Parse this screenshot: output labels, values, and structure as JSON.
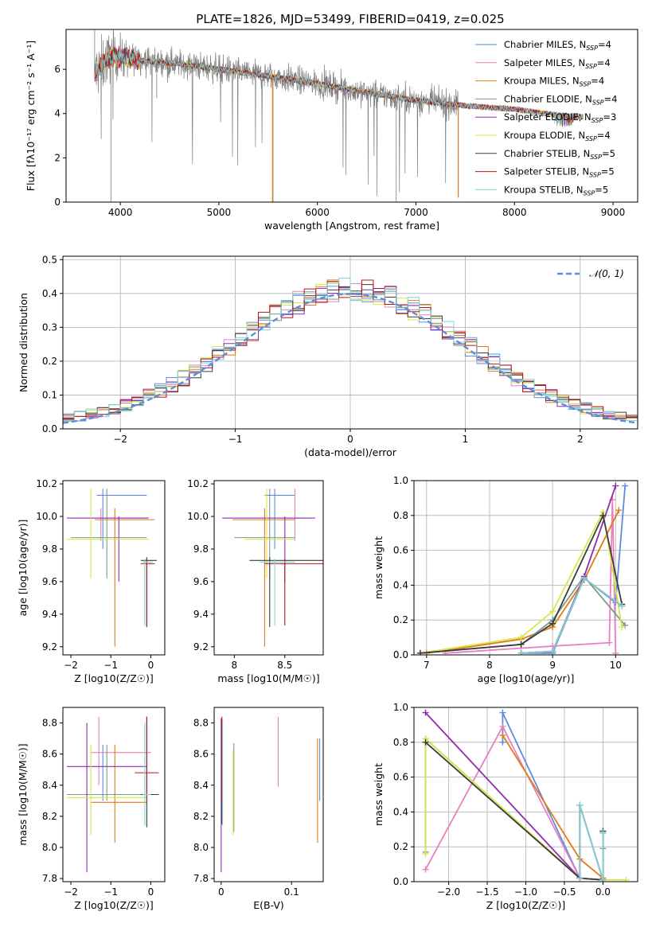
{
  "figure": {
    "title": "PLATE=1826, MJD=53499, FIBERID=0419, z=0.025"
  },
  "colors": {
    "Chabrier MILES": "#5b8ddb",
    "Salpeter MILES": "#e87fbf",
    "Kroupa MILES": "#e07b1a",
    "Chabrier ELODIE": "#7a9b8a",
    "Salpeter ELODIE": "#8e2cb0",
    "Kroupa ELODIE": "#d8e64a",
    "Chabrier STELIB": "#3c3c3c",
    "Salpeter STELIB": "#b81414",
    "Kroupa STELIB": "#7ed3d6",
    "data": "#7f7f7f",
    "normal_curve": "#5b8ddb"
  },
  "chart_data": [
    {
      "id": "spectrum",
      "type": "line",
      "xlabel": "wavelength [Angstrom, rest frame]",
      "ylabel": "Flux [fλ10⁻¹⁷ erg cm⁻² s⁻¹ A⁻¹]",
      "xlim": [
        3450,
        9250
      ],
      "ylim": [
        0,
        7.8
      ],
      "xticks": [
        4000,
        5000,
        6000,
        7000,
        8000,
        9000
      ],
      "yticks": [
        0,
        2,
        4,
        6
      ],
      "grid": false,
      "legend_position": "top-right",
      "data_range": [
        3740,
        7430
      ],
      "model_range": [
        3740,
        8700
      ],
      "continuum": [
        [
          3740,
          5.8
        ],
        [
          3900,
          6.6
        ],
        [
          4200,
          6.4
        ],
        [
          4600,
          6.25
        ],
        [
          5000,
          6.0
        ],
        [
          5500,
          5.7
        ],
        [
          6000,
          5.35
        ],
        [
          6500,
          4.95
        ],
        [
          7000,
          4.6
        ],
        [
          7500,
          4.35
        ],
        [
          8000,
          4.2
        ],
        [
          8400,
          3.95
        ],
        [
          8700,
          3.85
        ]
      ],
      "series": [
        {
          "name": "Chabrier MILES, N_SSP=4"
        },
        {
          "name": "Salpeter MILES, N_SSP=4"
        },
        {
          "name": "Kroupa MILES, N_SSP=4"
        },
        {
          "name": "Chabrier ELODIE, N_SSP=4"
        },
        {
          "name": "Salpeter ELODIE, N_SSP=3"
        },
        {
          "name": "Kroupa ELODIE, N_SSP=4"
        },
        {
          "name": "Chabrier STELIB, N_SSP=5"
        },
        {
          "name": "Salpeter STELIB, N_SSP=5"
        },
        {
          "name": "Kroupa STELIB, N_SSP=5"
        }
      ]
    },
    {
      "id": "residuals",
      "type": "line",
      "xlabel": "(data-model)/error",
      "ylabel": "Normed distribution",
      "xlim": [
        -2.5,
        2.5
      ],
      "ylim": [
        0,
        0.51
      ],
      "xticks": [
        -2,
        -1,
        0,
        1,
        2
      ],
      "yticks": [
        0.0,
        0.1,
        0.2,
        0.3,
        0.4,
        0.5
      ],
      "grid": true,
      "legend_position": "top-right",
      "legend_label": "𝒩(0, 1)",
      "bin_width": 0.1,
      "bins_start": -2.5,
      "series_count": 9
    },
    {
      "id": "age-Z",
      "type": "scatter",
      "xlabel": "Z [log10(Z/Z☉)]",
      "ylabel": "age  [log10(age/yr)]",
      "xlim": [
        -2.2,
        0.35
      ],
      "ylim": [
        9.15,
        10.22
      ],
      "xticks": [
        -2,
        -1,
        0
      ],
      "yticks": [
        9.2,
        9.4,
        9.6,
        9.8,
        10.0,
        10.2
      ],
      "points": [
        {
          "x": -1.2,
          "y": 10.13,
          "ex": [
            -1.35,
            -0.1
          ],
          "ey": [
            9.8,
            10.17
          ],
          "c": "Chabrier MILES"
        },
        {
          "x": -1.25,
          "y": 9.99,
          "ex": [
            -1.6,
            -0.15
          ],
          "ey": [
            9.85,
            10.05
          ],
          "c": "Salpeter MILES"
        },
        {
          "x": -0.9,
          "y": 9.98,
          "ex": [
            -1.4,
            0.1
          ],
          "ey": [
            9.2,
            10.05
          ],
          "c": "Kroupa MILES"
        },
        {
          "x": -1.1,
          "y": 9.87,
          "ex": [
            -2.0,
            -0.1
          ],
          "ey": [
            9.62,
            10.17
          ],
          "c": "Chabrier ELODIE"
        },
        {
          "x": -0.8,
          "y": 9.99,
          "ex": [
            -2.1,
            -0.05
          ],
          "ey": [
            9.6,
            10.0
          ],
          "c": "Salpeter ELODIE"
        },
        {
          "x": -1.5,
          "y": 9.86,
          "ex": [
            -2.1,
            -0.05
          ],
          "ey": [
            9.62,
            10.17
          ],
          "c": "Kroupa ELODIE"
        },
        {
          "x": -0.1,
          "y": 9.73,
          "ex": [
            -0.25,
            0.15
          ],
          "ey": [
            9.32,
            9.75
          ],
          "c": "Chabrier STELIB"
        },
        {
          "x": -0.1,
          "y": 9.71,
          "ex": [
            -0.25,
            0.1
          ],
          "ey": [
            9.33,
            9.74
          ],
          "c": "Salpeter STELIB"
        },
        {
          "x": -0.15,
          "y": 9.72,
          "ex": [
            -0.2,
            0.05
          ],
          "ey": [
            9.33,
            9.74
          ],
          "c": "Kroupa STELIB"
        }
      ]
    },
    {
      "id": "age-mass",
      "type": "scatter",
      "xlabel": "mass [log10(M/M☉)]",
      "ylabel": "",
      "xlim": [
        7.8,
        8.88
      ],
      "ylim": [
        9.15,
        10.22
      ],
      "xticks": [
        8.0,
        8.5
      ],
      "yticks": [
        9.2,
        9.4,
        9.6,
        9.8,
        10.0,
        10.2
      ],
      "points": [
        {
          "x": 8.4,
          "y": 10.13,
          "ex": [
            8.3,
            8.6
          ],
          "ey": [
            9.8,
            10.17
          ],
          "c": "Chabrier MILES"
        },
        {
          "x": 8.6,
          "y": 9.99,
          "ex": [
            8.5,
            8.7
          ],
          "ey": [
            9.85,
            10.17
          ],
          "c": "Salpeter MILES"
        },
        {
          "x": 8.3,
          "y": 9.98,
          "ex": [
            7.98,
            8.6
          ],
          "ey": [
            9.2,
            10.05
          ],
          "c": "Kroupa MILES"
        },
        {
          "x": 8.35,
          "y": 9.87,
          "ex": [
            8.0,
            8.6
          ],
          "ey": [
            9.62,
            10.17
          ],
          "c": "Chabrier ELODIE"
        },
        {
          "x": 8.5,
          "y": 9.99,
          "ex": [
            7.88,
            8.8
          ],
          "ey": [
            9.6,
            10.0
          ],
          "c": "Salpeter ELODIE"
        },
        {
          "x": 8.32,
          "y": 9.86,
          "ex": [
            8.1,
            8.6
          ],
          "ey": [
            9.62,
            10.17
          ],
          "c": "Kroupa ELODIE"
        },
        {
          "x": 8.35,
          "y": 9.73,
          "ex": [
            8.15,
            8.9
          ],
          "ey": [
            9.32,
            9.75
          ],
          "c": "Chabrier STELIB"
        },
        {
          "x": 8.5,
          "y": 9.71,
          "ex": [
            8.3,
            8.9
          ],
          "ey": [
            9.33,
            9.74
          ],
          "c": "Salpeter STELIB"
        },
        {
          "x": 8.4,
          "y": 9.72,
          "ex": [
            8.25,
            8.6
          ],
          "ey": [
            9.33,
            9.74
          ],
          "c": "Kroupa STELIB"
        }
      ]
    },
    {
      "id": "weight-age",
      "type": "line",
      "xlabel": "age  [log10(age/yr)]",
      "ylabel": "mass weight",
      "xlim": [
        6.8,
        10.35
      ],
      "ylim": [
        0,
        1
      ],
      "xticks": [
        7,
        8,
        9,
        10
      ],
      "yticks": [
        0.0,
        0.2,
        0.4,
        0.6,
        0.8,
        1.0
      ],
      "grid": true,
      "series": [
        {
          "c": "Chabrier MILES",
          "x": [
            8.5,
            9.0,
            9.5,
            10.0,
            10.15
          ],
          "y": [
            0.01,
            0.01,
            0.44,
            0.3,
            0.97
          ]
        },
        {
          "c": "Salpeter MILES",
          "x": [
            7.3,
            9.0,
            9.9,
            9.95,
            10.0
          ],
          "y": [
            0.01,
            0.05,
            0.07,
            0.89,
            0.01
          ]
        },
        {
          "c": "Kroupa MILES",
          "x": [
            7.0,
            8.5,
            9.0,
            9.5,
            10.05
          ],
          "y": [
            0.01,
            0.09,
            0.16,
            0.43,
            0.83
          ]
        },
        {
          "c": "Chabrier ELODIE",
          "x": [
            6.9,
            8.5,
            9.0,
            9.5,
            10.15
          ],
          "y": [
            0.01,
            0.06,
            0.2,
            0.45,
            0.17
          ]
        },
        {
          "c": "Salpeter ELODIE",
          "x": [
            8.5,
            9.0,
            9.5,
            10.0
          ],
          "y": [
            0.01,
            0.02,
            0.45,
            0.97
          ]
        },
        {
          "c": "Kroupa ELODIE",
          "x": [
            6.9,
            8.5,
            9.0,
            9.8,
            10.1
          ],
          "y": [
            0.01,
            0.1,
            0.25,
            0.82,
            0.16
          ]
        },
        {
          "c": "Chabrier STELIB",
          "x": [
            6.9,
            8.5,
            9.0,
            9.8,
            10.1
          ],
          "y": [
            0.01,
            0.06,
            0.18,
            0.8,
            0.29
          ]
        },
        {
          "c": "Salpeter STELIB",
          "x": [
            8.5,
            9.0,
            9.5,
            10.1
          ],
          "y": [
            0.01,
            0.02,
            0.44,
            0.28
          ]
        },
        {
          "c": "Kroupa STELIB",
          "x": [
            8.5,
            9.0,
            9.5,
            10.1
          ],
          "y": [
            0.01,
            0.02,
            0.44,
            0.28
          ]
        }
      ]
    },
    {
      "id": "mass-Z",
      "type": "scatter",
      "xlabel": "Z [log10(Z/Z☉)]",
      "ylabel": "mass [log10(M/M☉)]",
      "xlim": [
        -2.2,
        0.35
      ],
      "ylim": [
        7.78,
        8.9
      ],
      "xticks": [
        -2,
        -1,
        0
      ],
      "yticks": [
        7.8,
        8.0,
        8.2,
        8.4,
        8.6,
        8.8
      ],
      "points": [
        {
          "x": -1.2,
          "y": 8.34,
          "ex": [
            -1.4,
            -0.1
          ],
          "ey": [
            8.3,
            8.66
          ],
          "c": "Chabrier MILES"
        },
        {
          "x": -1.3,
          "y": 8.61,
          "ex": [
            -1.5,
            0.0
          ],
          "ey": [
            8.4,
            8.84
          ],
          "c": "Salpeter MILES"
        },
        {
          "x": -0.9,
          "y": 8.29,
          "ex": [
            -1.5,
            -0.1
          ],
          "ey": [
            8.03,
            8.66
          ],
          "c": "Kroupa MILES"
        },
        {
          "x": -1.1,
          "y": 8.34,
          "ex": [
            -2.1,
            0.2
          ],
          "ey": [
            8.3,
            8.66
          ],
          "c": "Chabrier ELODIE"
        },
        {
          "x": -1.6,
          "y": 8.52,
          "ex": [
            -2.1,
            -0.1
          ],
          "ey": [
            7.84,
            8.8
          ],
          "c": "Salpeter ELODIE"
        },
        {
          "x": -1.5,
          "y": 8.32,
          "ex": [
            -2.1,
            -0.1
          ],
          "ey": [
            8.08,
            8.66
          ],
          "c": "Kroupa ELODIE"
        },
        {
          "x": -0.1,
          "y": 8.34,
          "ex": [
            -0.25,
            0.2
          ],
          "ey": [
            8.13,
            8.84
          ],
          "c": "Chabrier STELIB"
        },
        {
          "x": -0.1,
          "y": 8.48,
          "ex": [
            -0.4,
            0.2
          ],
          "ey": [
            8.3,
            8.84
          ],
          "c": "Salpeter STELIB"
        },
        {
          "x": -0.15,
          "y": 8.34,
          "ex": [
            -0.2,
            0.0
          ],
          "ey": [
            8.14,
            8.8
          ],
          "c": "Kroupa STELIB"
        }
      ]
    },
    {
      "id": "mass-ebv",
      "type": "scatter",
      "xlabel": "E(B-V)",
      "ylabel": "",
      "xlim": [
        -0.01,
        0.145
      ],
      "ylim": [
        7.78,
        8.9
      ],
      "xticks": [
        0.0,
        0.1
      ],
      "yticks": [
        7.8,
        8.0,
        8.2,
        8.4,
        8.6,
        8.8
      ],
      "points": [
        {
          "x": 0.14,
          "y": 8.5,
          "ey": [
            8.3,
            8.7
          ],
          "c": "Chabrier MILES"
        },
        {
          "x": 0.081,
          "y": 8.6,
          "ey": [
            8.39,
            8.84
          ],
          "c": "Salpeter MILES"
        },
        {
          "x": 0.137,
          "y": 8.4,
          "ey": [
            8.03,
            8.7
          ],
          "c": "Kroupa MILES"
        },
        {
          "x": 0.018,
          "y": 8.45,
          "ey": [
            8.1,
            8.67
          ],
          "c": "Chabrier ELODIE"
        },
        {
          "x": 0.0,
          "y": 8.2,
          "ey": [
            7.84,
            8.83
          ],
          "c": "Salpeter ELODIE"
        },
        {
          "x": 0.017,
          "y": 8.4,
          "ey": [
            8.08,
            8.63
          ],
          "c": "Kroupa ELODIE"
        },
        {
          "x": 0.001,
          "y": 8.5,
          "ey": [
            8.15,
            8.82
          ],
          "c": "Chabrier STELIB"
        },
        {
          "x": 0.001,
          "y": 8.6,
          "ey": [
            8.3,
            8.84
          ],
          "c": "Salpeter STELIB"
        },
        {
          "x": 0.002,
          "y": 8.5,
          "ey": [
            8.14,
            8.8
          ],
          "c": "Kroupa STELIB"
        }
      ]
    },
    {
      "id": "weight-Z",
      "type": "line",
      "xlabel": "Z [log10(Z/Z☉)]",
      "ylabel": "mass weight",
      "xlim": [
        -2.45,
        0.45
      ],
      "ylim": [
        0,
        1
      ],
      "xticks": [
        -2.0,
        -1.5,
        -1.0,
        -0.5,
        0.0
      ],
      "yticks": [
        0.0,
        0.2,
        0.4,
        0.6,
        0.8,
        1.0
      ],
      "grid": true,
      "series": [
        {
          "c": "Chabrier MILES",
          "x": [
            -1.3,
            -1.3,
            -0.3,
            -0.3,
            0.0
          ],
          "y": [
            0.8,
            0.97,
            0.02,
            0.44,
            0.01
          ]
        },
        {
          "c": "Salpeter MILES",
          "x": [
            -2.3,
            -1.3,
            -0.3,
            0.0
          ],
          "y": [
            0.07,
            0.89,
            0.02,
            0.01
          ]
        },
        {
          "c": "Kroupa MILES",
          "x": [
            -1.3,
            -0.3,
            0.0
          ],
          "y": [
            0.84,
            0.13,
            0.02
          ]
        },
        {
          "c": "Chabrier ELODIE",
          "x": [
            -2.3,
            -2.3,
            -0.3,
            0.0,
            0.0
          ],
          "y": [
            0.17,
            0.82,
            0.02,
            0.01,
            0.19
          ]
        },
        {
          "c": "Salpeter ELODIE",
          "x": [
            -2.3,
            -0.3,
            0.0
          ],
          "y": [
            0.97,
            0.02,
            0.01
          ]
        },
        {
          "c": "Kroupa ELODIE",
          "x": [
            -2.3,
            -2.3,
            -0.3,
            0.0,
            0.3
          ],
          "y": [
            0.16,
            0.82,
            0.02,
            0.01,
            0.01
          ]
        },
        {
          "c": "Chabrier STELIB",
          "x": [
            -2.3,
            -0.3,
            0.0,
            0.0
          ],
          "y": [
            0.8,
            0.02,
            0.01,
            0.29
          ]
        },
        {
          "c": "Salpeter STELIB",
          "x": [
            -0.3,
            -0.3,
            0.0,
            0.0
          ],
          "y": [
            0.02,
            0.44,
            0.01,
            0.28
          ]
        },
        {
          "c": "Kroupa STELIB",
          "x": [
            -0.3,
            -0.3,
            0.0,
            0.0
          ],
          "y": [
            0.02,
            0.44,
            0.01,
            0.28
          ]
        }
      ]
    }
  ]
}
